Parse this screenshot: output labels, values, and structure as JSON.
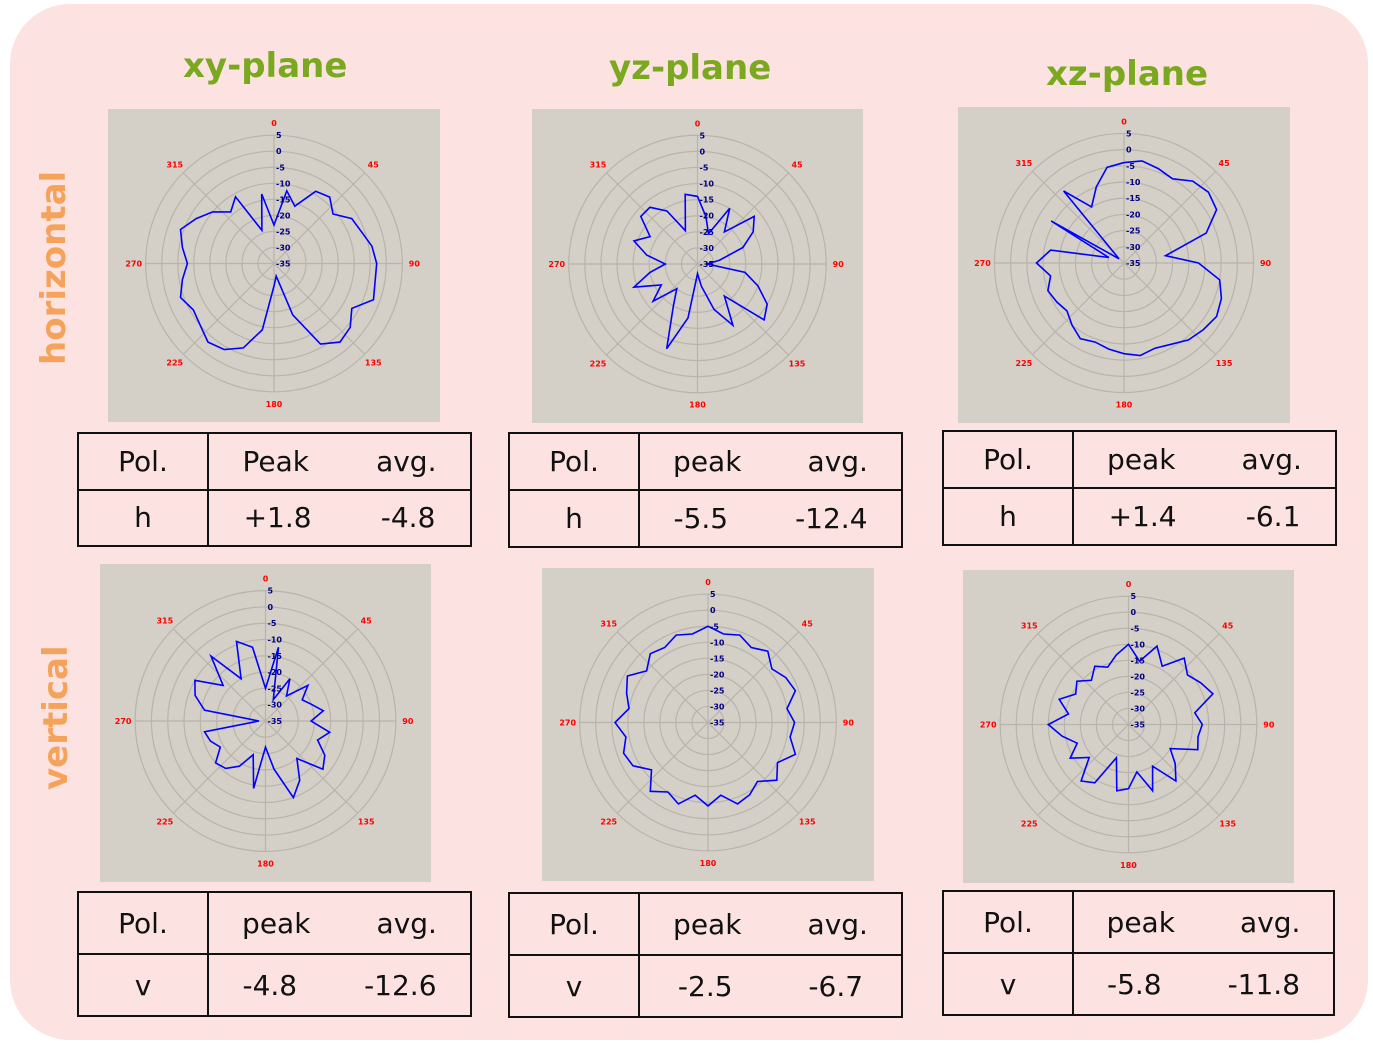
{
  "columns": [
    "xy-plane",
    "yz-plane",
    "xz-plane"
  ],
  "rows": [
    "horizontal",
    "vertical"
  ],
  "chart_data": [
    {
      "type": "polar-line",
      "row": "horizontal",
      "column": "xy-plane",
      "angle_labels": [
        "0",
        "45",
        "90",
        "135",
        "180",
        "225",
        "270",
        "315"
      ],
      "radial_labels": [
        "5",
        "0",
        "-5",
        "-10",
        "-15",
        "-20",
        "-25",
        "-30",
        "-35"
      ],
      "rlim": [
        -35,
        5
      ],
      "series_color": "#0000ff",
      "angles": [
        0,
        10,
        20,
        30,
        40,
        50,
        60,
        70,
        80,
        90,
        100,
        110,
        120,
        130,
        140,
        150,
        160,
        170,
        180,
        190,
        200,
        210,
        220,
        230,
        240,
        250,
        260,
        270,
        280,
        290,
        300,
        310,
        320,
        330,
        340,
        350
      ],
      "values": [
        -23,
        -12,
        -16,
        -9,
        -8,
        -11,
        -7,
        -6,
        -4,
        -3,
        -3,
        -2,
        -7,
        -4,
        -3,
        -6,
        -18,
        -31,
        -28,
        -14,
        -7,
        -4,
        -3,
        -5,
        -6,
        -4,
        -6,
        -8,
        -6,
        -4,
        -7,
        -10,
        -14,
        -11,
        -24,
        -13
      ]
    },
    {
      "type": "polar-line",
      "row": "horizontal",
      "column": "yz-plane",
      "angle_labels": [
        "0",
        "45",
        "90",
        "135",
        "180",
        "225",
        "270",
        "315"
      ],
      "radial_labels": [
        "5",
        "0",
        "-5",
        "-10",
        "-15",
        "-20",
        "-25",
        "-30",
        "-35"
      ],
      "rlim": [
        -35,
        5
      ],
      "series_color": "#0000ff",
      "angles": [
        0,
        10,
        20,
        30,
        40,
        50,
        60,
        70,
        80,
        90,
        100,
        110,
        120,
        130,
        140,
        150,
        160,
        170,
        180,
        190,
        200,
        210,
        220,
        230,
        240,
        250,
        260,
        270,
        280,
        290,
        300,
        310,
        320,
        330,
        340,
        350
      ],
      "values": [
        -14,
        -20,
        -25,
        -15,
        -22,
        -12,
        -15,
        -20,
        -28,
        -32,
        -20,
        -15,
        -10,
        -8,
        -22,
        -13,
        -20,
        -28,
        -32,
        -18,
        -7,
        -20,
        -25,
        -17,
        -22,
        -14,
        -20,
        -25,
        -19,
        -14,
        -18,
        -12,
        -12,
        -16,
        -24,
        -13
      ]
    },
    {
      "type": "polar-line",
      "row": "horizontal",
      "column": "xz-plane",
      "angle_labels": [
        "0",
        "45",
        "90",
        "135",
        "180",
        "225",
        "270",
        "315"
      ],
      "radial_labels": [
        "5",
        "0",
        "-5",
        "-10",
        "-15",
        "-20",
        "-25",
        "-30",
        "-35"
      ],
      "rlim": [
        -35,
        5
      ],
      "series_color": "#0000ff",
      "angles": [
        0,
        10,
        20,
        30,
        40,
        50,
        60,
        70,
        80,
        90,
        100,
        110,
        120,
        130,
        140,
        150,
        160,
        170,
        180,
        190,
        200,
        210,
        220,
        230,
        240,
        250,
        260,
        270,
        280,
        290,
        300,
        310,
        320,
        330,
        340,
        350
      ],
      "values": [
        -4,
        -3,
        -4,
        -5,
        -2,
        -1,
        -2,
        -8,
        -22,
        -12,
        -5,
        -3,
        -2,
        -3,
        -4,
        -6,
        -7,
        -6,
        -7,
        -8,
        -9,
        -8,
        -10,
        -12,
        -11,
        -10,
        -12,
        -8,
        -12,
        -30,
        -9,
        -33,
        -6,
        -15,
        -10,
        -5
      ]
    },
    {
      "type": "polar-line",
      "row": "vertical",
      "column": "xy-plane",
      "angle_labels": [
        "0",
        "45",
        "90",
        "135",
        "180",
        "225",
        "270",
        "315"
      ],
      "radial_labels": [
        "5",
        "0",
        "-5",
        "-10",
        "-15",
        "-20",
        "-25",
        "-30",
        "-35"
      ],
      "rlim": [
        -35,
        5
      ],
      "series_color": "#0000ff",
      "angles": [
        0,
        10,
        20,
        30,
        40,
        50,
        60,
        70,
        80,
        90,
        100,
        110,
        120,
        130,
        140,
        150,
        160,
        170,
        180,
        190,
        200,
        210,
        220,
        230,
        240,
        250,
        260,
        270,
        280,
        290,
        300,
        310,
        320,
        330,
        340,
        350
      ],
      "values": [
        -25,
        -12,
        -28,
        -20,
        -25,
        -18,
        -22,
        -20,
        -17,
        -21,
        -15,
        -18,
        -14,
        -12,
        -20,
        -14,
        -10,
        -20,
        -27,
        -14,
        -24,
        -19,
        -16,
        -15,
        -19,
        -17,
        -16,
        -33,
        -16,
        -12,
        -10,
        -18,
        -9,
        -20,
        -9,
        -12
      ]
    },
    {
      "type": "polar-line",
      "row": "vertical",
      "column": "yz-plane",
      "angle_labels": [
        "0",
        "45",
        "90",
        "135",
        "180",
        "225",
        "270",
        "315"
      ],
      "radial_labels": [
        "5",
        "0",
        "-5",
        "-10",
        "-15",
        "-20",
        "-25",
        "-30",
        "-35"
      ],
      "rlim": [
        -35,
        5
      ],
      "series_color": "#0000ff",
      "angles": [
        0,
        10,
        20,
        30,
        40,
        50,
        60,
        70,
        80,
        90,
        100,
        110,
        120,
        130,
        140,
        150,
        160,
        170,
        180,
        190,
        200,
        210,
        220,
        230,
        240,
        250,
        260,
        270,
        280,
        290,
        300,
        310,
        320,
        330,
        340,
        350
      ],
      "values": [
        -5,
        -7,
        -6,
        -8,
        -6,
        -9,
        -7,
        -6,
        -10,
        -8,
        -9,
        -6,
        -10,
        -7,
        -11,
        -9,
        -8,
        -12,
        -9,
        -12,
        -8,
        -10,
        -7,
        -12,
        -8,
        -7,
        -9,
        -6,
        -10,
        -8,
        -6,
        -10,
        -7,
        -8,
        -6,
        -7
      ]
    },
    {
      "type": "polar-line",
      "row": "vertical",
      "column": "xz-plane",
      "angle_labels": [
        "0",
        "45",
        "90",
        "135",
        "180",
        "225",
        "270",
        "315"
      ],
      "radial_labels": [
        "5",
        "0",
        "-5",
        "-10",
        "-15",
        "-20",
        "-25",
        "-30",
        "-35"
      ],
      "rlim": [
        -35,
        5
      ],
      "series_color": "#0000ff",
      "angles": [
        0,
        10,
        20,
        30,
        40,
        50,
        60,
        70,
        80,
        90,
        100,
        110,
        120,
        130,
        140,
        150,
        160,
        170,
        180,
        190,
        200,
        210,
        220,
        230,
        240,
        250,
        260,
        270,
        280,
        290,
        300,
        310,
        320,
        330,
        340,
        350
      ],
      "values": [
        -10,
        -15,
        -9,
        -14,
        -8,
        -11,
        -9,
        -7,
        -14,
        -12,
        -13,
        -12,
        -20,
        -16,
        -12,
        -20,
        -13,
        -20,
        -15,
        -14,
        -24,
        -14,
        -12,
        -19,
        -14,
        -18,
        -14,
        -10,
        -16,
        -12,
        -16,
        -14,
        -17,
        -14,
        -16,
        -13
      ]
    }
  ],
  "tables": [
    {
      "pol_header": "Pol.",
      "peak_header": "Peak",
      "avg_header": "avg.",
      "pol": "h",
      "peak": "+1.8",
      "avg": "-4.8"
    },
    {
      "pol_header": "Pol.",
      "peak_header": "peak",
      "avg_header": "avg.",
      "pol": "h",
      "peak": "-5.5",
      "avg": "-12.4"
    },
    {
      "pol_header": "Pol.",
      "peak_header": "peak",
      "avg_header": "avg.",
      "pol": "h",
      "peak": "+1.4",
      "avg": "-6.1"
    },
    {
      "pol_header": "Pol.",
      "peak_header": "peak",
      "avg_header": "avg.",
      "pol": "v",
      "peak": "-4.8",
      "avg": "-12.6"
    },
    {
      "pol_header": "Pol.",
      "peak_header": "peak",
      "avg_header": "avg.",
      "pol": "v",
      "peak": "-2.5",
      "avg": "-6.7"
    },
    {
      "pol_header": "Pol.",
      "peak_header": "peak",
      "avg_header": "avg.",
      "pol": "v",
      "peak": "-5.8",
      "avg": "-11.8"
    }
  ],
  "colors": {
    "panel": "#fde2e2",
    "title": "#7aa81e",
    "row_label": "#f5a35a",
    "plot_bg": "#d4d0c8",
    "grid": "#b8b4ac",
    "trace": "#0000ff",
    "angle_label": "#ff0000",
    "radial_label": "#000080"
  }
}
